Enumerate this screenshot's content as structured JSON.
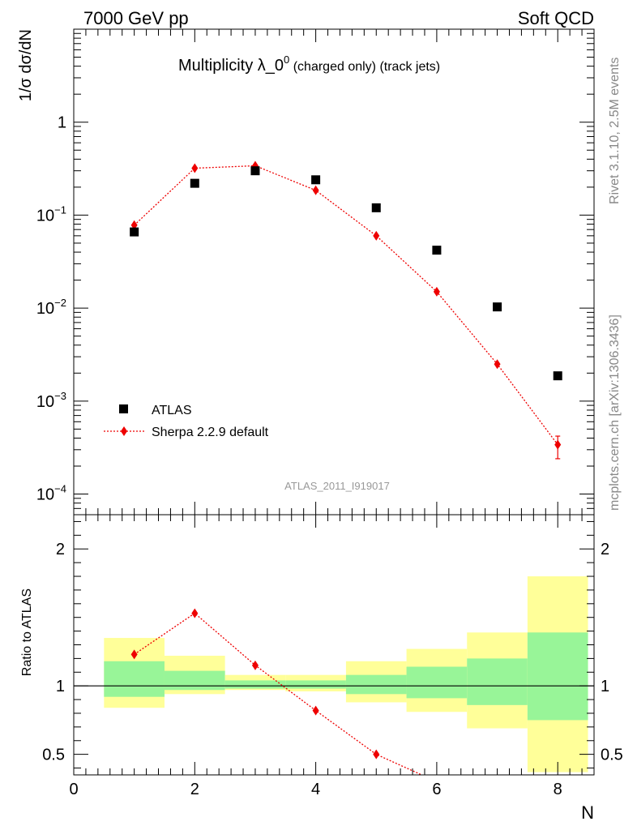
{
  "header": {
    "left_label": "7000 GeV pp",
    "right_label": "Soft QCD"
  },
  "side_labels": {
    "rivet": "Rivet 3.1.10,  2.5M events",
    "mcplots": "mcplots.cern.ch [arXiv:1306.3436]"
  },
  "chart_data": [
    {
      "type": "scatter",
      "title_main": "Multiplicity λ_0",
      "title_sup": "0",
      "title_sub": " (charged only) (track jets)",
      "ylabel": "1/σ dσ/dN",
      "yscale": "log",
      "ylim": [
        6e-05,
        10
      ],
      "xlim": [
        0,
        8.6
      ],
      "y_ticks": [
        {
          "value": 1,
          "label": "1",
          "sup": ""
        },
        {
          "value": 0.1,
          "label": "10",
          "sup": "−1"
        },
        {
          "value": 0.01,
          "label": "10",
          "sup": "−2"
        },
        {
          "value": 0.001,
          "label": "10",
          "sup": "−3"
        },
        {
          "value": 0.0001,
          "label": "10",
          "sup": "−4"
        }
      ],
      "watermark": "ATLAS_2011_I919017",
      "legend_position": "lower-left",
      "series": [
        {
          "name": "ATLAS",
          "marker": "square",
          "color": "#000000",
          "x": [
            1,
            2,
            3,
            4,
            5,
            6,
            7,
            8
          ],
          "y": [
            0.066,
            0.22,
            0.3,
            0.24,
            0.12,
            0.042,
            0.0103,
            0.00187
          ]
        },
        {
          "name": "Sherpa 2.2.9 default",
          "marker": "diamond",
          "line": "dotted",
          "color": "#ee0000",
          "x": [
            1,
            2,
            3,
            4,
            5,
            6,
            7,
            8
          ],
          "y": [
            0.078,
            0.32,
            0.34,
            0.185,
            0.06,
            0.015,
            0.0025,
            0.00034
          ],
          "yerr_low": [
            0,
            0,
            0,
            0,
            0,
            0,
            0,
            0.0001
          ],
          "yerr_high": [
            0,
            0,
            0,
            0,
            0,
            0,
            0,
            8e-05
          ]
        }
      ]
    },
    {
      "type": "scatter",
      "ylabel": "Ratio to ATLAS",
      "xlabel": "N",
      "ylim": [
        0.35,
        2.25
      ],
      "xlim": [
        0,
        8.6
      ],
      "x_ticks": [
        0,
        2,
        4,
        6,
        8
      ],
      "y_ticks": [
        0.5,
        1,
        2
      ],
      "bands": [
        {
          "x_low": 0.5,
          "x_high": 1.5,
          "inner": [
            0.92,
            1.18
          ],
          "outer": [
            0.84,
            1.35
          ]
        },
        {
          "x_low": 1.5,
          "x_high": 2.5,
          "inner": [
            0.97,
            1.11
          ],
          "outer": [
            0.94,
            1.22
          ]
        },
        {
          "x_low": 2.5,
          "x_high": 3.5,
          "inner": [
            0.98,
            1.04
          ],
          "outer": [
            0.97,
            1.08
          ]
        },
        {
          "x_low": 3.5,
          "x_high": 4.5,
          "inner": [
            0.98,
            1.04
          ],
          "outer": [
            0.96,
            1.08
          ]
        },
        {
          "x_low": 4.5,
          "x_high": 5.5,
          "inner": [
            0.94,
            1.08
          ],
          "outer": [
            0.88,
            1.18
          ]
        },
        {
          "x_low": 5.5,
          "x_high": 6.5,
          "inner": [
            0.91,
            1.14
          ],
          "outer": [
            0.81,
            1.27
          ]
        },
        {
          "x_low": 6.5,
          "x_high": 7.5,
          "inner": [
            0.86,
            1.2
          ],
          "outer": [
            0.69,
            1.39
          ]
        },
        {
          "x_low": 7.5,
          "x_high": 8.5,
          "inner": [
            0.75,
            1.39
          ],
          "outer": [
            0.37,
            1.8
          ]
        }
      ],
      "series": [
        {
          "name": "Sherpa 2.2.9 default",
          "marker": "diamond",
          "line": "dotted",
          "color": "#ee0000",
          "x": [
            1,
            2,
            3,
            4,
            5,
            6
          ],
          "y": [
            1.23,
            1.53,
            1.15,
            0.82,
            0.5,
            0.3
          ]
        }
      ]
    }
  ],
  "colors": {
    "band_inner": "#98f598",
    "band_outer": "#ffff99",
    "model": "#ee0000",
    "data": "#000000",
    "watermark": "#999999"
  }
}
